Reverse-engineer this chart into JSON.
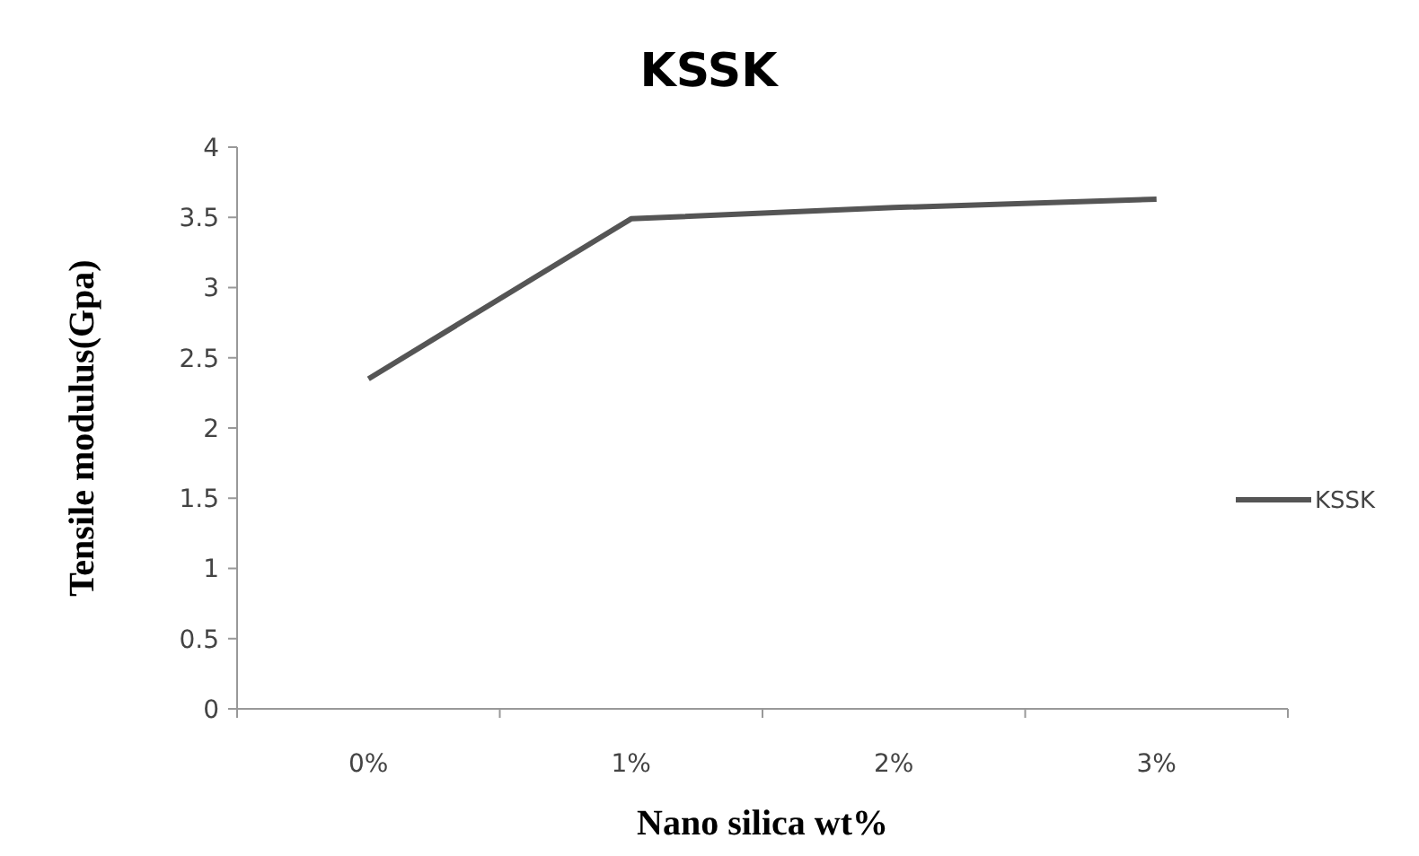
{
  "chart_data": {
    "type": "line",
    "title": "KSSK",
    "xlabel": "Nano silica wt%",
    "ylabel": "Tensile modulus(Gpa)",
    "categories": [
      "0%",
      "1%",
      "2%",
      "3%"
    ],
    "series": [
      {
        "name": "KSSK",
        "color": "#555555",
        "values": [
          2.35,
          3.49,
          3.57,
          3.63
        ]
      }
    ],
    "ylim": [
      0,
      4
    ],
    "yticks": [
      0,
      0.5,
      1,
      1.5,
      2,
      2.5,
      3,
      3.5,
      4
    ],
    "grid": false,
    "legend": "right",
    "marker": "none"
  }
}
